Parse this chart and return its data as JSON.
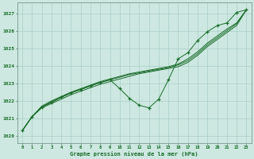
{
  "xlabel": "Graphe pression niveau de la mer (hPa)",
  "background_color": "#cce8e0",
  "grid_color": "#aacfc8",
  "line_color": "#1a6b2a",
  "xlim_min": -0.5,
  "xlim_max": 23.5,
  "ylim_min": 1019.6,
  "ylim_max": 1027.6,
  "yticks": [
    1020,
    1021,
    1022,
    1023,
    1024,
    1025,
    1026,
    1027
  ],
  "xticks": [
    0,
    1,
    2,
    3,
    4,
    5,
    6,
    7,
    8,
    9,
    10,
    11,
    12,
    13,
    14,
    15,
    16,
    17,
    18,
    19,
    20,
    21,
    22,
    23
  ],
  "smooth1": [
    1020.3,
    1021.1,
    1021.6,
    1021.85,
    1022.1,
    1022.35,
    1022.55,
    1022.75,
    1022.95,
    1023.1,
    1023.25,
    1023.4,
    1023.55,
    1023.65,
    1023.75,
    1023.85,
    1023.95,
    1024.2,
    1024.6,
    1025.1,
    1025.5,
    1025.9,
    1026.3,
    1027.2
  ],
  "smooth2": [
    1020.3,
    1021.1,
    1021.65,
    1021.95,
    1022.2,
    1022.45,
    1022.65,
    1022.85,
    1023.05,
    1023.2,
    1023.35,
    1023.5,
    1023.6,
    1023.7,
    1023.8,
    1023.9,
    1024.05,
    1024.3,
    1024.7,
    1025.2,
    1025.6,
    1026.0,
    1026.4,
    1027.2
  ],
  "smooth3": [
    1020.3,
    1021.1,
    1021.7,
    1022.0,
    1022.25,
    1022.5,
    1022.7,
    1022.9,
    1023.1,
    1023.25,
    1023.4,
    1023.55,
    1023.65,
    1023.75,
    1023.85,
    1023.95,
    1024.1,
    1024.4,
    1024.8,
    1025.3,
    1025.7,
    1026.1,
    1026.45,
    1027.2
  ],
  "marker_line": [
    1020.3,
    1021.1,
    1021.65,
    1021.9,
    1022.2,
    1022.45,
    1022.65,
    1022.85,
    1023.05,
    1023.2,
    1022.7,
    1022.15,
    1021.75,
    1021.6,
    1022.1,
    1023.2,
    1024.4,
    1024.75,
    1025.45,
    1025.95,
    1026.3,
    1026.45,
    1027.05,
    1027.2
  ]
}
